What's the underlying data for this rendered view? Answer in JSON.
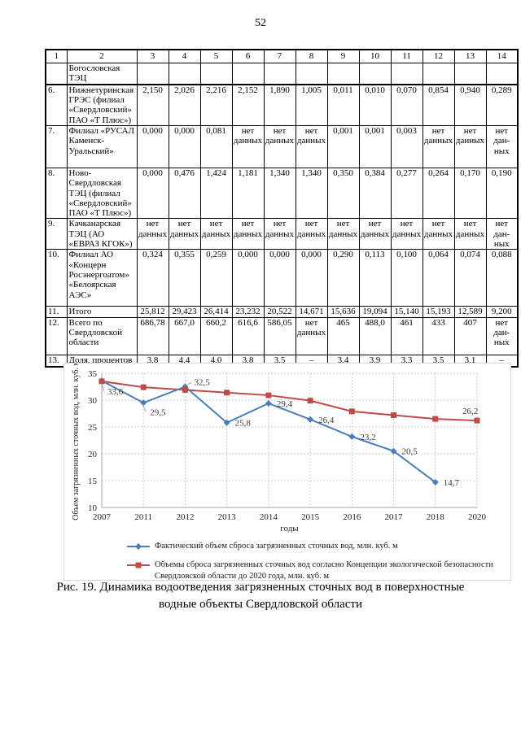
{
  "page": {
    "number": "52"
  },
  "table": {
    "headers": [
      "1",
      "2",
      "3",
      "4",
      "5",
      "6",
      "7",
      "8",
      "9",
      "10",
      "11",
      "12",
      "13",
      "14"
    ],
    "rows": [
      {
        "num": "",
        "name": "Богословская ТЭЦ",
        "values": [
          "",
          "",
          "",
          "",
          "",
          "",
          "",
          "",
          "",
          "",
          "",
          ""
        ]
      },
      {
        "num": "6.",
        "name": "Нижнетуринская ГРЭС (филиал «Свердловский» ПАО «Т Плюс»)",
        "values": [
          "2,150",
          "2,026",
          "2,216",
          "2,152",
          "1,890",
          "1,005",
          "0,011",
          "0,010",
          "0,070",
          "0,854",
          "0,940",
          "0,289"
        ]
      },
      {
        "num": "7.",
        "name": "Филиал «РУСАЛ Каменск-Уральский»",
        "values": [
          "0,000",
          "0,000",
          "0,081",
          "нет данных",
          "нет данных",
          "нет данных",
          "0,001",
          "0,001",
          "0,003",
          "нет данных",
          "нет данных",
          "нет дан-ных"
        ]
      },
      {
        "num": "8.",
        "name": "Ново-Свердловская ТЭЦ (филиал «Свердловский» ПАО «Т Плюс»)",
        "values": [
          "0,000",
          "0,476",
          "1,424",
          "1,181",
          "1,340",
          "1,340",
          "0,350",
          "0,384",
          "0,277",
          "0,264",
          "0,170",
          "0,190"
        ]
      },
      {
        "num": "9.",
        "name": "Качканарская ТЭЦ (АО «ЕВРАЗ КГОК»)",
        "values": [
          "нет данных",
          "нет данных",
          "нет данных",
          "нет данных",
          "нет данных",
          "нет данных",
          "нет данных",
          "нет данных",
          "нет данных",
          "нет данных",
          "нет данных",
          "нет дан-ных"
        ]
      },
      {
        "num": "10.",
        "name": "Филиал АО «Концерн Росэнергоатом» «Белоярская АЭС»",
        "values": [
          "0,324",
          "0,355",
          "0,259",
          "0,000",
          "0,000",
          "0,000",
          "0,290",
          "0,113",
          "0,100",
          "0,064",
          "0,074",
          "0,088"
        ]
      },
      {
        "num": "11.",
        "name": "Итого",
        "values": [
          "25,812",
          "29,423",
          "26,414",
          "23,232",
          "20,522",
          "14,671",
          "15,636",
          "19,094",
          "15,140",
          "15,193",
          "12,589",
          "9,200"
        ]
      },
      {
        "num": "12.",
        "name": "Всего по Свердловской области",
        "values": [
          "686,78",
          "667,0",
          "660,2",
          "616,6",
          "586,05",
          "нет данных",
          "465",
          "488,0",
          "461",
          "433",
          "407",
          "нет дан-ных"
        ]
      },
      {
        "num": "13.",
        "name": "Доля, процентов",
        "values": [
          "3,8",
          "4,4",
          "4,0",
          "3,8",
          "3,5",
          "–",
          "3,4",
          "3,9",
          "3,3",
          "3,5",
          "3,1",
          "–"
        ]
      }
    ]
  },
  "chart_data": {
    "type": "line",
    "categories": [
      "2007",
      "2011",
      "2012",
      "2013",
      "2014",
      "2015",
      "2016",
      "2017",
      "2018",
      "2020"
    ],
    "series": [
      {
        "name": "Фактический объем сброса загрязненных сточных вод, млн. куб. м",
        "color": "#4A7EBB",
        "marker": "diamond",
        "values": [
          33.6,
          29.5,
          32.5,
          25.8,
          29.4,
          26.4,
          23.2,
          20.5,
          14.7,
          null
        ],
        "labeled_points": "all"
      },
      {
        "name": "Объемы сброса загрязненных сточных вод согласно Концепции экологической безопасности Свердловской области до 2020 года, млн. куб. м",
        "color": "#BE4B48",
        "marker": "square",
        "values": [
          33.5,
          32.4,
          31.9,
          31.4,
          30.9,
          29.9,
          27.9,
          27.2,
          26.5,
          26.2
        ],
        "labeled_points": [
          9
        ]
      }
    ],
    "xlabel": "годы",
    "ylabel": "Объем загрязненных сточных вод, млн. куб. м",
    "ylim": [
      10,
      35
    ],
    "yticks": [
      10,
      15,
      20,
      25,
      30,
      35
    ],
    "grid": "dashed",
    "legend_position": "bottom"
  },
  "caption": "Рис. 19. Динамика водоотведения загрязненных сточных вод в поверхностные водные объекты Свердловской области"
}
